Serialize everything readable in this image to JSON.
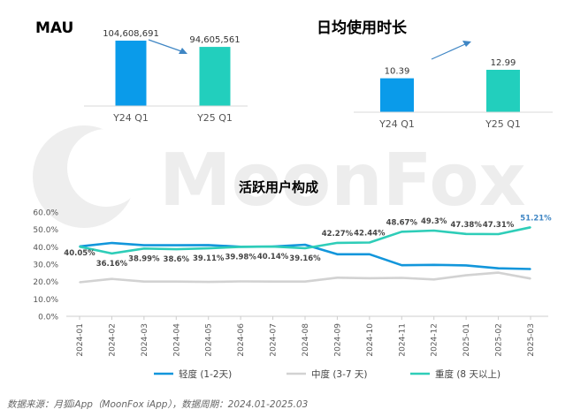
{
  "colors": {
    "blue": "#1296DB",
    "teal": "#2ECDB8",
    "gray": "#D2D2D2",
    "bar_blue": "#0A9BEA",
    "bar_teal": "#22CFBD",
    "arrow": "#3F86C4",
    "watermark": "#EDEDED"
  },
  "watermark": {
    "text": "MoonFox"
  },
  "footer": {
    "source": "数据来源：月狐iApp（MoonFox iApp），数据周期：2024.01-2025.03"
  },
  "chart_data": [
    {
      "type": "bar",
      "title": "MAU",
      "categories": [
        "Y24 Q1",
        "Y25 Q1"
      ],
      "values": [
        104608691,
        94605561
      ],
      "labels": [
        "104,608,691",
        "94,605,561"
      ],
      "trend_arrow": "down"
    },
    {
      "type": "bar",
      "title": "日均使用时长",
      "categories": [
        "Y24 Q1",
        "Y25 Q1"
      ],
      "values": [
        10.39,
        12.99
      ],
      "labels": [
        "10.39",
        "12.99"
      ],
      "trend_arrow": "up"
    },
    {
      "type": "line",
      "title": "活跃用户构成",
      "x": [
        "2024-01",
        "2024-02",
        "2024-03",
        "2024-04",
        "2024-05",
        "2024-06",
        "2024-07",
        "2024-08",
        "2024-09",
        "2024-10",
        "2024-11",
        "2024-12",
        "2025-01",
        "2025-02",
        "2025-03"
      ],
      "ylim": [
        0,
        60
      ],
      "yticks": [
        "0.0%",
        "10.0%",
        "20.0%",
        "30.0%",
        "40.0%",
        "50.0%",
        "60.0%"
      ],
      "grid": false,
      "legend_position": "bottom",
      "series": [
        {
          "name": "轻度 (1-2天)",
          "color": "#1296DB",
          "values": [
            40.2,
            42.2,
            40.9,
            40.9,
            41.0,
            40.0,
            40.1,
            41.2,
            35.7,
            35.7,
            29.4,
            29.6,
            29.3,
            27.6,
            27.2
          ],
          "labels": []
        },
        {
          "name": "中度 (3-7 天)",
          "color": "#D2D2D2",
          "values": [
            19.6,
            21.5,
            20.0,
            20.0,
            19.8,
            20.1,
            20.0,
            20.0,
            22.2,
            21.9,
            22.1,
            21.2,
            23.6,
            25.1,
            21.7
          ],
          "labels": []
        },
        {
          "name": "重度 (8 天以上)",
          "color": "#2ECDB8",
          "values": [
            40.05,
            36.16,
            38.99,
            38.6,
            39.11,
            39.98,
            40.14,
            39.16,
            42.27,
            42.44,
            48.67,
            49.3,
            47.38,
            47.31,
            51.21
          ],
          "labels": [
            "40.05%",
            "36.16%",
            "38.99%",
            "38.6%",
            "39.11%",
            "39.98%",
            "40.14%",
            "39.16%",
            "42.27%",
            "42.44%",
            "48.67%",
            "49.3%",
            "47.38%",
            "47.31%",
            "51.21%"
          ]
        }
      ]
    }
  ]
}
